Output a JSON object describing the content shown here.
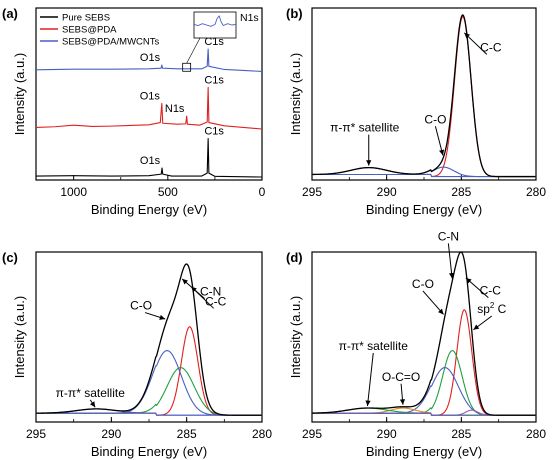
{
  "colors": {
    "black": "#000000",
    "red": "#e02020",
    "blue": "#4a5fc0",
    "green": "#20a040",
    "orange": "#e08a20",
    "background": "#ffffff"
  },
  "chart_data": [
    {
      "panel": "(a)",
      "type": "line",
      "xlabel": "Binding Energy (eV)",
      "ylabel": "Intensity (a.u.)",
      "xlim": [
        1200,
        0
      ],
      "x_ticks": [
        1000,
        500,
        0
      ],
      "legend_position": "top-left",
      "series": [
        {
          "name": "Pure SEBS",
          "color": "#000000",
          "offset": 0,
          "points": [
            [
              1200,
              0.3
            ],
            [
              1000,
              0.4
            ],
            [
              800,
              0.3
            ],
            [
              600,
              0.4
            ],
            [
              535,
              0.9
            ],
            [
              531,
              2.8
            ],
            [
              527,
              0.9
            ],
            [
              480,
              0.3
            ],
            [
              320,
              0.3
            ],
            [
              291,
              1.2
            ],
            [
              286,
              12.0
            ],
            [
              282,
              1.2
            ],
            [
              250,
              0.2
            ],
            [
              0,
              0.0
            ]
          ]
        },
        {
          "name": "SEBS@PDA",
          "color": "#e02020",
          "offset": 15,
          "points": [
            [
              1200,
              0.5
            ],
            [
              1100,
              0.7
            ],
            [
              1000,
              1.2
            ],
            [
              900,
              0.8
            ],
            [
              800,
              0.9
            ],
            [
              700,
              1.1
            ],
            [
              600,
              1.3
            ],
            [
              540,
              2.0
            ],
            [
              532,
              8.0
            ],
            [
              527,
              1.8
            ],
            [
              450,
              1.5
            ],
            [
              405,
              1.6
            ],
            [
              400,
              4.0
            ],
            [
              396,
              1.5
            ],
            [
              330,
              1.2
            ],
            [
              291,
              2.2
            ],
            [
              286,
              13.0
            ],
            [
              282,
              2.0
            ],
            [
              200,
              1.0
            ],
            [
              0,
              0.0
            ]
          ]
        },
        {
          "name": "SEBS@PDA/MWCNTs",
          "color": "#4a5fc0",
          "offset": 33,
          "points": [
            [
              1200,
              0.5
            ],
            [
              1000,
              0.7
            ],
            [
              800,
              0.7
            ],
            [
              600,
              0.8
            ],
            [
              536,
              1.0
            ],
            [
              532,
              2.0
            ],
            [
              528,
              1.0
            ],
            [
              450,
              0.8
            ],
            [
              400,
              0.8
            ],
            [
              320,
              0.8
            ],
            [
              291,
              1.6
            ],
            [
              286,
              7.0
            ],
            [
              282,
              1.6
            ],
            [
              200,
              0.6
            ],
            [
              0,
              0.0
            ]
          ]
        }
      ],
      "inset": {
        "label": "N1s",
        "points": [
          [
            0,
            0.52
          ],
          [
            0.1,
            0.48
          ],
          [
            0.2,
            0.55
          ],
          [
            0.3,
            0.5
          ],
          [
            0.4,
            0.45
          ],
          [
            0.5,
            0.52
          ],
          [
            0.55,
            0.75
          ],
          [
            0.6,
            0.85
          ],
          [
            0.65,
            0.6
          ],
          [
            0.7,
            0.48
          ],
          [
            0.8,
            0.55
          ],
          [
            0.9,
            0.5
          ],
          [
            1,
            0.52
          ]
        ]
      },
      "annotations": [
        {
          "text": "O1s",
          "x": 531,
          "offset": 0
        },
        {
          "text": "C1s",
          "x": 286,
          "offset": 0
        },
        {
          "text": "O1s",
          "x": 532,
          "offset": 15
        },
        {
          "text": "N1s",
          "x": 400,
          "offset": 15
        },
        {
          "text": "C1s",
          "x": 286,
          "offset": 15
        },
        {
          "text": "O1s",
          "x": 531,
          "offset": 33
        },
        {
          "text": "C1s",
          "x": 286,
          "offset": 33
        }
      ]
    },
    {
      "panel": "(b)",
      "type": "line",
      "xlabel": "Binding Energy (eV)",
      "ylabel": "Intensity (a.u.)",
      "xlim": [
        295,
        280
      ],
      "x_ticks": [
        295,
        290,
        285,
        280
      ],
      "ylim": [
        0,
        100
      ],
      "baseline": 2,
      "envelope_color": "#000000",
      "components": [
        {
          "label": "C-C",
          "center": 284.9,
          "height": 93,
          "width": 0.55,
          "color": "#e02020"
        },
        {
          "label": "C-O",
          "center": 286.2,
          "height": 5.5,
          "width": 0.7,
          "color": "#4a5fc0"
        },
        {
          "label": "π-π* satellite",
          "center": 291.2,
          "height": 4,
          "width": 1.2,
          "color": "#4a5fc0"
        }
      ],
      "annotations": [
        {
          "text": "C-C",
          "x": 284.9
        },
        {
          "text": "C-O",
          "x": 286.2
        },
        {
          "text": "π-π* satellite",
          "x": 291.2
        }
      ]
    },
    {
      "panel": "(c)",
      "type": "line",
      "xlabel": "Binding Energy (eV)",
      "ylabel": "Intensity (a.u.)",
      "xlim": [
        295,
        280
      ],
      "x_ticks": [
        295,
        290,
        285,
        280
      ],
      "ylim": [
        0,
        100
      ],
      "baseline": 4,
      "envelope_color": "#000000",
      "components": [
        {
          "label": "C-C",
          "center": 284.8,
          "height": 52,
          "width": 0.55,
          "color": "#e02020"
        },
        {
          "label": "C-N",
          "center": 285.4,
          "height": 28,
          "width": 0.9,
          "color": "#20a040"
        },
        {
          "label": "C-O",
          "center": 286.3,
          "height": 38,
          "width": 0.95,
          "color": "#4a5fc0"
        },
        {
          "label": "π-π* satellite",
          "center": 291.0,
          "height": 2.5,
          "width": 1.3,
          "color": "#4a5fc0"
        }
      ],
      "annotations": [
        {
          "text": "C-C",
          "x": 284.8
        },
        {
          "text": "C-N",
          "x": 285.4
        },
        {
          "text": "C-O",
          "x": 286.3
        },
        {
          "text": "π-π* satellite",
          "x": 291.0
        }
      ]
    },
    {
      "panel": "(d)",
      "type": "line",
      "xlabel": "Binding Energy (eV)",
      "ylabel": "Intensity (a.u.)",
      "xlim": [
        295,
        280
      ],
      "x_ticks": [
        295,
        290,
        285,
        280
      ],
      "ylim": [
        0,
        100
      ],
      "baseline": 4,
      "envelope_color": "#000000",
      "components": [
        {
          "label": "C-C",
          "center": 284.8,
          "height": 62,
          "width": 0.5,
          "color": "#e02020"
        },
        {
          "label": "C-N",
          "center": 285.6,
          "height": 38,
          "width": 0.65,
          "color": "#20a040"
        },
        {
          "label": "C-O",
          "center": 286.1,
          "height": 28,
          "width": 0.9,
          "color": "#4a5fc0"
        },
        {
          "label": "O-C=O",
          "center": 288.9,
          "height": 3,
          "width": 0.8,
          "color": "#e08a20"
        },
        {
          "label": "π-π* satellite",
          "center": 291.3,
          "height": 3,
          "width": 1.3,
          "color": "#20a040"
        },
        {
          "label": "sp² C",
          "center": 284.3,
          "height": 3,
          "width": 0.4,
          "color": "#9b59b6"
        }
      ],
      "annotations": [
        {
          "text": "C-C",
          "x": 284.8
        },
        {
          "text": "C-N",
          "x": 285.6
        },
        {
          "text": "C-O",
          "x": 286.1
        },
        {
          "text": "O-C=O",
          "x": 288.9
        },
        {
          "text": "π-π* satellite",
          "x": 291.3
        },
        {
          "text": "sp",
          "sup": "2",
          "suffix": " C",
          "x": 284.3
        }
      ]
    }
  ]
}
